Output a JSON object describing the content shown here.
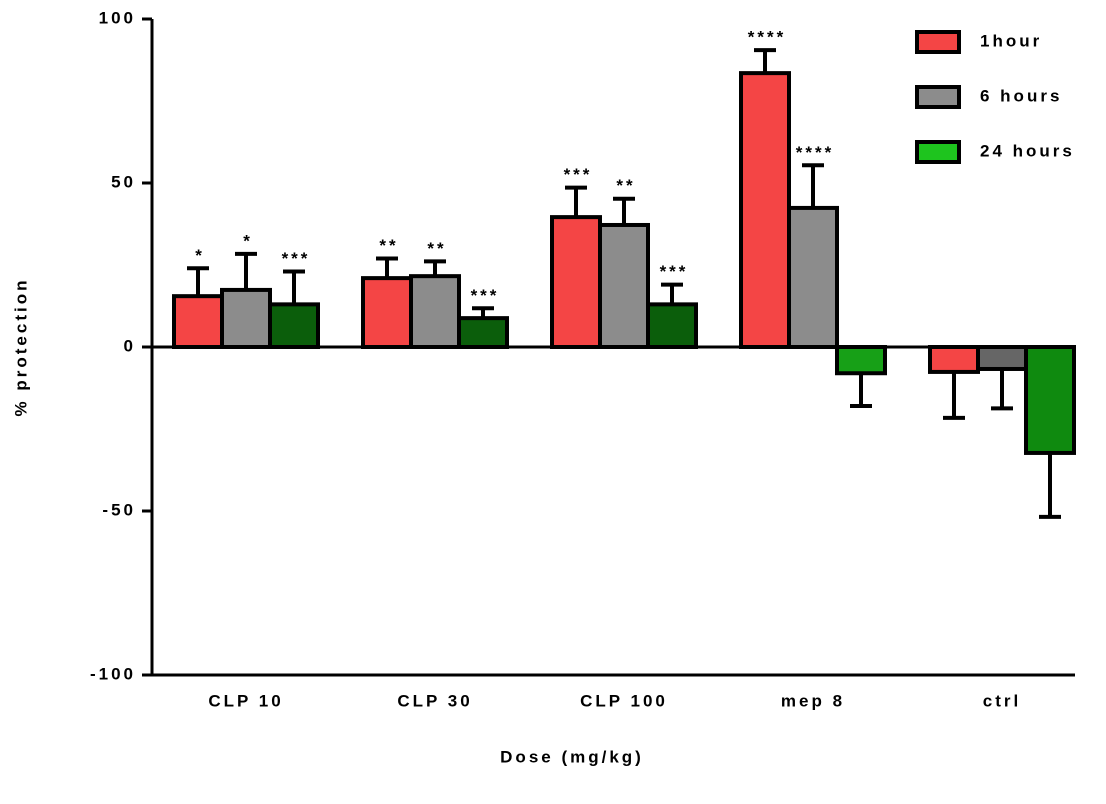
{
  "chart_data": {
    "type": "bar",
    "x_label": "Dose (mg/kg)",
    "y_label": "% protection",
    "categories": [
      "CLP 10",
      "CLP 30",
      "CLP 100",
      "mep 8",
      "ctrl"
    ],
    "ylim": [
      -100,
      100
    ],
    "yticks": [
      -100,
      -50,
      0,
      50,
      100
    ],
    "legend": "top-right",
    "series": [
      {
        "name": "1hour",
        "color": "#f44545",
        "colors": [
          "#f44545",
          "#f44545",
          "#f44545",
          "#f44545",
          "#f44545"
        ],
        "values": [
          15.5,
          21,
          39.6,
          83.5,
          -7.6
        ],
        "errors": [
          8.5,
          6,
          9,
          7,
          14
        ],
        "annotations": [
          "*",
          "**",
          "***",
          "****",
          null
        ]
      },
      {
        "name": "6 hours",
        "color": "#8c8c8c",
        "colors": [
          "#8c8c8c",
          "#8c8c8c",
          "#8c8c8c",
          "#8c8c8c",
          "#666666"
        ],
        "values": [
          17.4,
          21.6,
          37.2,
          42.4,
          -6.7
        ],
        "errors": [
          11,
          4.5,
          8,
          13,
          12
        ],
        "annotations": [
          "*",
          "**",
          "**",
          "****",
          null
        ]
      },
      {
        "name": "24 hours",
        "color": "#1ec41e",
        "colors": [
          "#0b5e0b",
          "#0b5e0b",
          "#0b5e0b",
          "#17a017",
          "#0f8a0f"
        ],
        "values": [
          13,
          8.8,
          13,
          -8,
          -32.3
        ],
        "errors": [
          10,
          3,
          6,
          10,
          19.5
        ],
        "annotations": [
          "***",
          "***",
          "***",
          null,
          null
        ]
      }
    ]
  }
}
